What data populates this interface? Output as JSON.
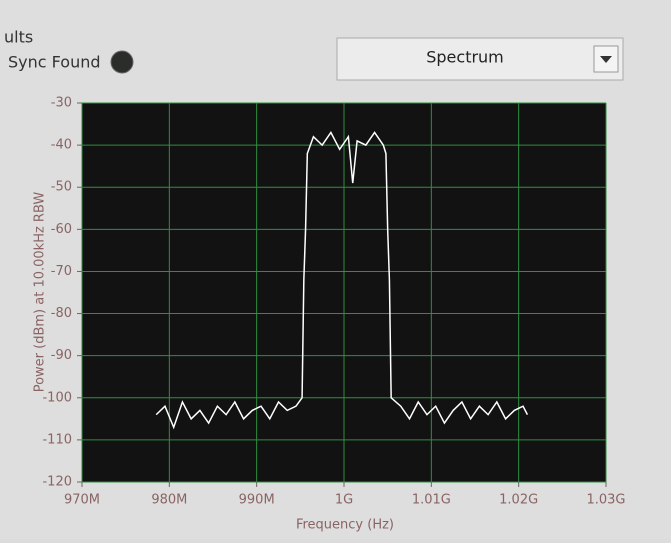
{
  "ui": {
    "section_title": "ults",
    "indicator_label": "Sync Found",
    "dropdown_value": "Spectrum"
  },
  "chart_data": {
    "type": "line",
    "x_label": "Frequency (Hz)",
    "y_label": "Power (dBm) at 10.00kHz RBW",
    "x": [
      978500000,
      979500000,
      980500000,
      981500000,
      982500000,
      983500000,
      984500000,
      985500000,
      986500000,
      987500000,
      988500000,
      989500000,
      990500000,
      991500000,
      992500000,
      993500000,
      994500000,
      995200000,
      995400000,
      995600000,
      995800000,
      996500000,
      997500000,
      998500000,
      999500000,
      1000500000,
      1001000000,
      1001500000,
      1002500000,
      1003500000,
      1004500000,
      1004800000,
      1005000000,
      1005200000,
      1005400000,
      1006500000,
      1007500000,
      1008500000,
      1009500000,
      1010500000,
      1011500000,
      1012500000,
      1013500000,
      1014500000,
      1015500000,
      1016500000,
      1017500000,
      1018500000,
      1019500000,
      1020500000,
      1021000000
    ],
    "values": [
      -104,
      -102,
      -107,
      -101,
      -105,
      -103,
      -106,
      -102,
      -104,
      -101,
      -105,
      -103,
      -102,
      -105,
      -101,
      -103,
      -102,
      -100,
      -72,
      -60,
      -42,
      -38,
      -40,
      -37,
      -41,
      -38,
      -49,
      -39,
      -40,
      -37,
      -40,
      -42,
      -60,
      -72,
      -100,
      -102,
      -105,
      -101,
      -104,
      -102,
      -106,
      -103,
      -101,
      -105,
      -102,
      -104,
      -101,
      -105,
      -103,
      -102,
      -104
    ],
    "color": "#ffffff",
    "xlim": [
      970000000,
      1030000000
    ],
    "xticks": [
      {
        "value": 970000000,
        "label": "970M"
      },
      {
        "value": 980000000,
        "label": "980M"
      },
      {
        "value": 990000000,
        "label": "990M"
      },
      {
        "value": 1000000000,
        "label": "1G"
      },
      {
        "value": 1010000000,
        "label": "1.01G"
      },
      {
        "value": 1020000000,
        "label": "1.02G"
      },
      {
        "value": 1030000000,
        "label": "1.03G"
      }
    ],
    "ylim": [
      -120,
      -30
    ],
    "yticks": [
      -120,
      -110,
      -100,
      -90,
      -80,
      -70,
      -60,
      -50,
      -40,
      -30
    ],
    "grid": true,
    "grid_color": "#2f8f3f",
    "background": "#121212"
  }
}
